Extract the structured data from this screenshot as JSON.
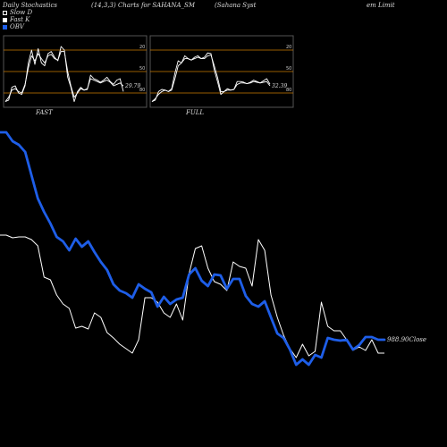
{
  "header": {
    "left": "Daily Stochastics",
    "middle": "(14,3,3) Charts for SAHANA_SM",
    "right_a": "(Sahana  Syst",
    "right_b": "em Limit"
  },
  "legend": [
    {
      "label": "Slow  D",
      "color": "#ffffff",
      "fill": "#000000"
    },
    {
      "label": "Fast K",
      "color": "#ffffff",
      "fill": "#ffffff"
    },
    {
      "label": "OBV",
      "color": "#1e5ee8",
      "fill": "#1e5ee8"
    }
  ],
  "colors": {
    "obv": "#1e5ee8",
    "price": "#ffffff",
    "band": "#cc7a00",
    "panel_border": "#555555",
    "panel_bg": "#000000"
  },
  "chart_data": [
    {
      "type": "line",
      "name": "FAST",
      "title": "FAST",
      "ylim": [
        0,
        100
      ],
      "grid_levels": [
        20,
        50,
        80
      ],
      "tick_labels": [
        "80",
        "50",
        "20"
      ],
      "last_value_label": "29.79",
      "series": [
        {
          "name": "Fast K",
          "values": [
            8,
            10,
            28,
            30,
            20,
            18,
            30,
            62,
            80,
            60,
            82,
            62,
            58,
            75,
            78,
            70,
            65,
            85,
            80,
            42,
            28,
            8,
            22,
            28,
            24,
            25,
            45,
            40,
            38,
            35,
            38,
            42,
            36,
            32,
            38,
            40,
            22
          ]
        },
        {
          "name": "Slow D",
          "values": [
            8,
            14,
            24,
            26,
            22,
            20,
            32,
            55,
            72,
            65,
            75,
            68,
            62,
            72,
            74,
            68,
            66,
            78,
            78,
            50,
            30,
            14,
            20,
            26,
            24,
            26,
            40,
            38,
            36,
            34,
            36,
            38,
            35,
            30,
            32,
            34,
            29.79
          ]
        }
      ]
    },
    {
      "type": "line",
      "name": "FULL",
      "title": "FULL",
      "ylim": [
        0,
        100
      ],
      "grid_levels": [
        20,
        50,
        80
      ],
      "tick_labels": [
        "80",
        "50",
        "20"
      ],
      "last_value_label": "32.39",
      "series": [
        {
          "name": "Fast K",
          "values": [
            8,
            10,
            22,
            25,
            24,
            22,
            26,
            48,
            65,
            62,
            72,
            68,
            66,
            70,
            72,
            68,
            70,
            76,
            75,
            52,
            36,
            18,
            22,
            26,
            24,
            25,
            36,
            36,
            35,
            33,
            35,
            38,
            36,
            34,
            37,
            40,
            32.39
          ]
        },
        {
          "name": "Slow D",
          "values": [
            8,
            12,
            18,
            22,
            24,
            22,
            24,
            40,
            58,
            62,
            68,
            68,
            66,
            68,
            70,
            68,
            68,
            72,
            73,
            58,
            42,
            22,
            22,
            24,
            24,
            25,
            32,
            34,
            34,
            33,
            34,
            36,
            35,
            34,
            35,
            36,
            30
          ]
        }
      ]
    },
    {
      "type": "line",
      "name": "main",
      "title": "",
      "last_value_label": "988.90Close",
      "series": [
        {
          "name": "OBV",
          "values": [
            148,
            148,
            158,
            162,
            170,
            196,
            222,
            237,
            250,
            265,
            270,
            280,
            267,
            276,
            270,
            282,
            293,
            302,
            318,
            325,
            328,
            333,
            318,
            323,
            327,
            343,
            332,
            340,
            335,
            333,
            307,
            300,
            314,
            320,
            307,
            308,
            323,
            312,
            312,
            331,
            340,
            343,
            337,
            355,
            373,
            378,
            391,
            408,
            402,
            408,
            397,
            400,
            378,
            380,
            381,
            380,
            391,
            386,
            377,
            377,
            380,
            380
          ]
        },
        {
          "name": "Price",
          "values": [
            263,
            263,
            266,
            265,
            265,
            268,
            275,
            310,
            313,
            330,
            340,
            345,
            367,
            365,
            368,
            350,
            355,
            372,
            378,
            385,
            390,
            395,
            380,
            333,
            333,
            338,
            350,
            355,
            340,
            358,
            306,
            278,
            275,
            300,
            315,
            318,
            325,
            293,
            298,
            300,
            320,
            268,
            280,
            330,
            355,
            375,
            390,
            400,
            385,
            398,
            393,
            338,
            365,
            370,
            370,
            380,
            392,
            388,
            392,
            380,
            395,
            395
          ]
        }
      ]
    }
  ]
}
